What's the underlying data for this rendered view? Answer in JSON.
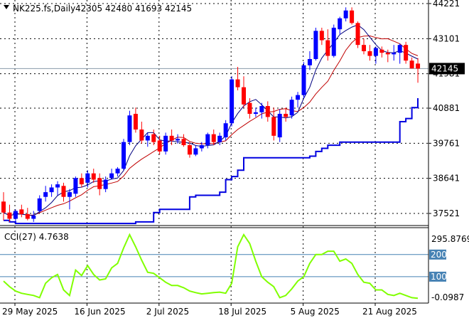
{
  "chart_data": [
    {
      "type": "candlestick",
      "symbol": "NK225.fs,Daily",
      "ohlc_text": "42305 42480 41693 42145",
      "last_price": "42145",
      "price_ticks": [
        "44221",
        "43101",
        "41981",
        "40881",
        "39761",
        "38641",
        "37521"
      ],
      "price_ylim": [
        37100,
        44360
      ],
      "date_labels": [
        {
          "label": "29 May 2025",
          "index": 0
        },
        {
          "label": "16 Jun 2025",
          "index": 12
        },
        {
          "label": "2 Jul 2025",
          "index": 24
        },
        {
          "label": "18 Jul 2025",
          "index": 36
        },
        {
          "label": "5 Aug 2025",
          "index": 48
        },
        {
          "label": "21 Aug 2025",
          "index": 60
        }
      ],
      "candles": [
        [
          37900,
          38200,
          37300,
          37550
        ],
        [
          37550,
          37800,
          37250,
          37350
        ],
        [
          37350,
          37650,
          37200,
          37600
        ],
        [
          37650,
          37800,
          37400,
          37500
        ],
        [
          37500,
          37700,
          37300,
          37350
        ],
        [
          37350,
          37600,
          37250,
          37450
        ],
        [
          37600,
          38100,
          37550,
          38000
        ],
        [
          38050,
          38400,
          37900,
          38200
        ],
        [
          38200,
          38450,
          38050,
          38350
        ],
        [
          38350,
          38550,
          38100,
          38450
        ],
        [
          38400,
          38500,
          37900,
          38050
        ],
        [
          38050,
          38300,
          37650,
          38200
        ],
        [
          38150,
          38700,
          38050,
          38650
        ],
        [
          38650,
          38800,
          38350,
          38450
        ],
        [
          38500,
          38900,
          38350,
          38800
        ],
        [
          38800,
          38950,
          38500,
          38600
        ],
        [
          38650,
          38800,
          38100,
          38300
        ],
        [
          38300,
          38700,
          38200,
          38600
        ],
        [
          38650,
          38950,
          38600,
          38800
        ],
        [
          38800,
          39000,
          38700,
          38950
        ],
        [
          38950,
          39900,
          38900,
          39800
        ],
        [
          39800,
          40800,
          39700,
          40650
        ],
        [
          40700,
          40900,
          40100,
          40200
        ],
        [
          40200,
          40450,
          39750,
          39850
        ],
        [
          39850,
          40100,
          39650,
          40000
        ],
        [
          40050,
          40200,
          39700,
          39800
        ],
        [
          39850,
          40000,
          39400,
          39500
        ],
        [
          39500,
          40100,
          39400,
          40000
        ],
        [
          40000,
          40200,
          39700,
          39850
        ],
        [
          39850,
          40050,
          39750,
          39900
        ],
        [
          39900,
          40050,
          39650,
          39700
        ],
        [
          39700,
          39800,
          39300,
          39400
        ],
        [
          39400,
          39700,
          39350,
          39600
        ],
        [
          39600,
          39800,
          39500,
          39700
        ],
        [
          39700,
          40100,
          39600,
          40050
        ],
        [
          40050,
          40200,
          39700,
          39800
        ],
        [
          39800,
          40100,
          39700,
          40000
        ],
        [
          39950,
          40500,
          39850,
          40400
        ],
        [
          40400,
          41900,
          40300,
          41800
        ],
        [
          41800,
          42200,
          41450,
          41550
        ],
        [
          41550,
          41900,
          40900,
          41000
        ],
        [
          41050,
          41200,
          40550,
          40700
        ],
        [
          40700,
          40900,
          40600,
          40750
        ],
        [
          40750,
          41050,
          40550,
          40950
        ],
        [
          40950,
          41100,
          40450,
          40600
        ],
        [
          40600,
          40900,
          39850,
          40000
        ],
        [
          39950,
          40850,
          39800,
          40700
        ],
        [
          40700,
          40900,
          40450,
          40600
        ],
        [
          40650,
          41250,
          40550,
          41150
        ],
        [
          41150,
          41400,
          40900,
          41300
        ],
        [
          41300,
          42350,
          41200,
          42250
        ],
        [
          42250,
          42700,
          42100,
          42450
        ],
        [
          42450,
          43450,
          42400,
          43350
        ],
        [
          43350,
          43450,
          42900,
          43050
        ],
        [
          43050,
          43400,
          42400,
          42550
        ],
        [
          42550,
          43550,
          42500,
          43450
        ],
        [
          43400,
          43800,
          43250,
          43750
        ],
        [
          43750,
          44100,
          43650,
          44000
        ],
        [
          44000,
          44100,
          43550,
          43600
        ],
        [
          43600,
          43650,
          42800,
          42900
        ],
        [
          42900,
          43100,
          42600,
          42700
        ],
        [
          42700,
          42900,
          42400,
          42550
        ],
        [
          42550,
          42850,
          42300,
          42800
        ],
        [
          42750,
          42850,
          42500,
          42650
        ],
        [
          42650,
          42750,
          42350,
          42600
        ],
        [
          42600,
          42900,
          42400,
          42650
        ],
        [
          42650,
          42950,
          42300,
          42900
        ],
        [
          42900,
          43000,
          42300,
          42400
        ],
        [
          42400,
          42500,
          42150,
          42150
        ],
        [
          42305,
          42480,
          41693,
          42145
        ]
      ],
      "cci_title": "CCI(27) 4.7638",
      "cci_ticks": [
        "295.8769",
        "200",
        "100",
        "-0.0987"
      ],
      "cci_ylim": [
        -5,
        296
      ],
      "cci_values": [
        80,
        55,
        35,
        25,
        20,
        15,
        5,
        70,
        95,
        110,
        40,
        15,
        130,
        105,
        150,
        110,
        85,
        90,
        140,
        160,
        230,
        290,
        235,
        175,
        120,
        115,
        95,
        75,
        60,
        60,
        50,
        35,
        28,
        22,
        25,
        28,
        30,
        25,
        70,
        235,
        290,
        250,
        170,
        100,
        75,
        55,
        5,
        15,
        45,
        80,
        100,
        160,
        200,
        200,
        215,
        215,
        170,
        180,
        160,
        110,
        75,
        70,
        40,
        40,
        20,
        15,
        25,
        15,
        5,
        2
      ],
      "colors": {
        "bull": "#0000ff",
        "bear": "#ff0000",
        "doji": "#00a000",
        "cci": "#80ff00",
        "support": "#0000e0",
        "ma_fast": "#000080",
        "ma_slow": "#c00000",
        "grid": "#000000",
        "cci_level": "#4682b4"
      }
    }
  ]
}
